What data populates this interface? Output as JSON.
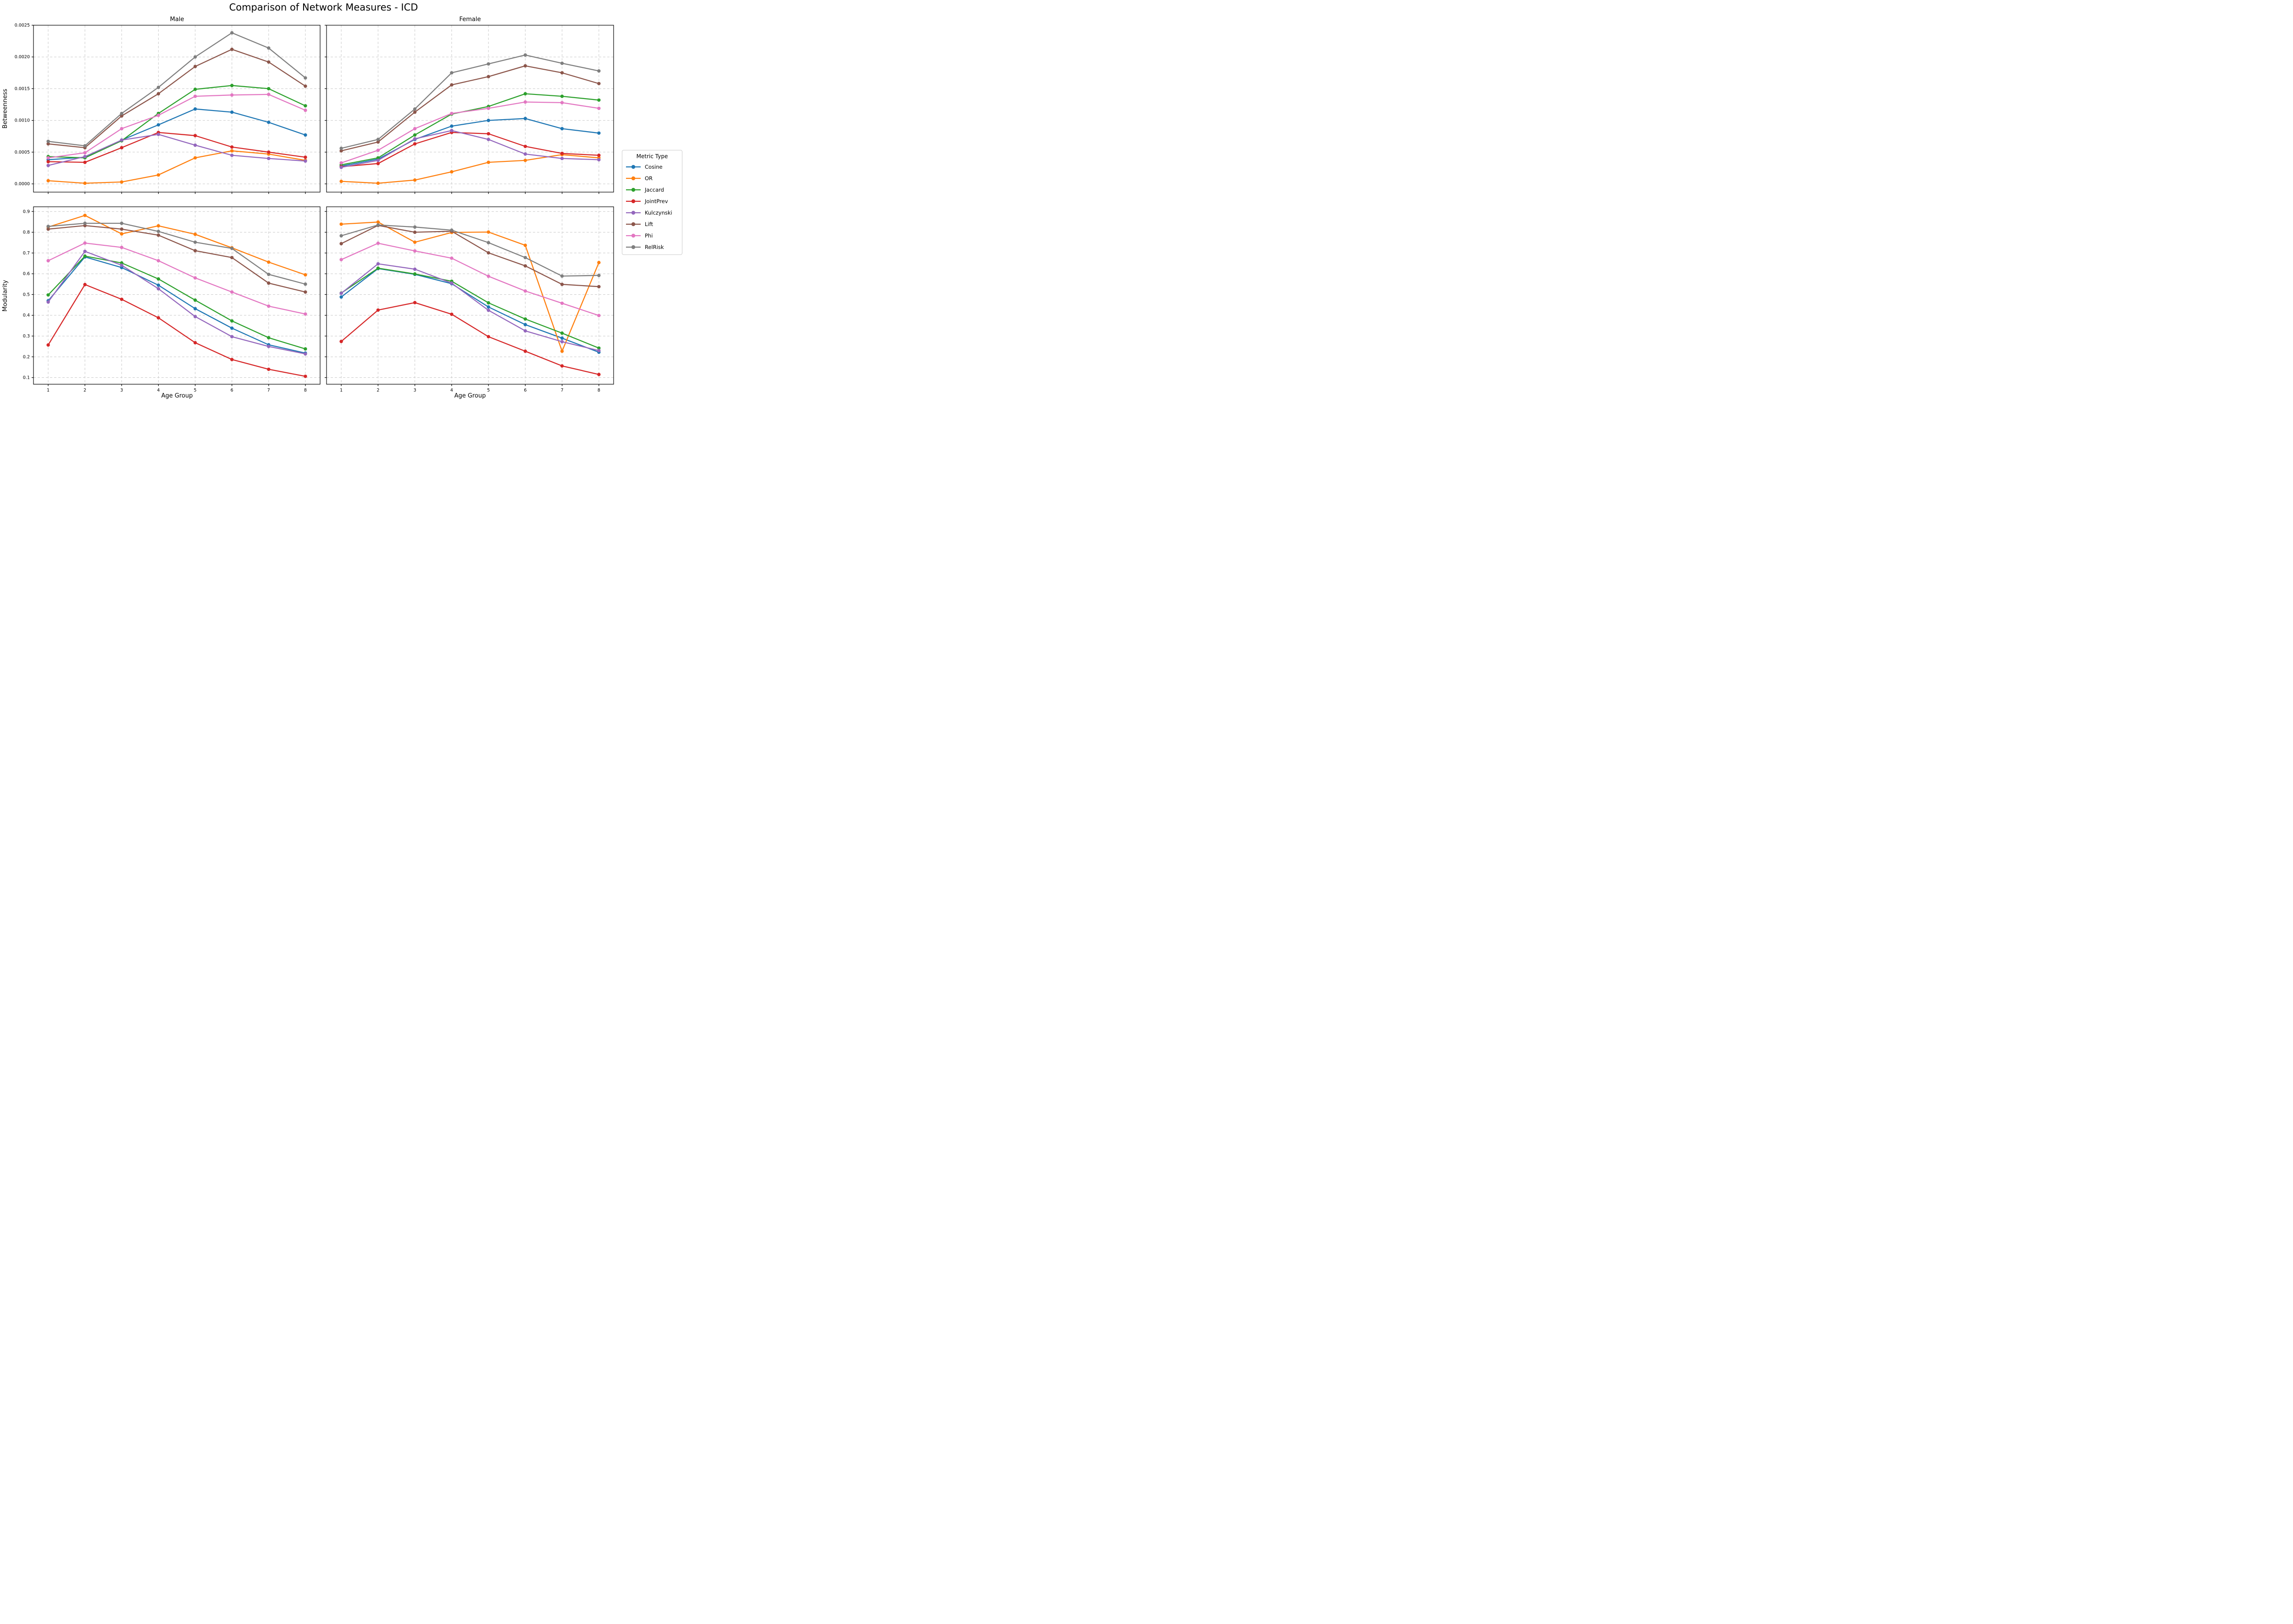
{
  "figure": {
    "title": "Comparison of Network Measures - ICD",
    "background_color": "#ffffff",
    "grid_color": "#c9c9c9",
    "spine_color": "#000000"
  },
  "axes": {
    "x_label": "Age Group",
    "row_labels": [
      "Betweenness",
      "Modularity"
    ],
    "col_titles": [
      "Male",
      "Female"
    ],
    "x_tick_labels": [
      "1",
      "2",
      "3",
      "4",
      "5",
      "6",
      "7",
      "8"
    ]
  },
  "legend": {
    "title": "Metric Type",
    "position": "right-outside",
    "entries": [
      {
        "label": "Cosine",
        "color": "#1f77b4"
      },
      {
        "label": "OR",
        "color": "#ff7f0e"
      },
      {
        "label": "Jaccard",
        "color": "#2ca02c"
      },
      {
        "label": "JointPrev",
        "color": "#d62728"
      },
      {
        "label": "Kulczynski",
        "color": "#9467bd"
      },
      {
        "label": "Lift",
        "color": "#8c564b"
      },
      {
        "label": "Phi",
        "color": "#e377c2"
      },
      {
        "label": "RelRisk",
        "color": "#7f7f7f"
      }
    ]
  },
  "chart_data": [
    {
      "type": "line",
      "panel": "betweenness-male",
      "title": "Male",
      "ylabel": "Betweenness",
      "x": [
        1,
        2,
        3,
        4,
        5,
        6,
        7,
        8
      ],
      "xlim": [
        0.6,
        8.4
      ],
      "ylim": [
        -0.00013,
        0.0025
      ],
      "yticks": [
        0.0,
        0.0005,
        0.001,
        0.0015,
        0.002,
        0.0025
      ],
      "ytick_labels": [
        "0.0000",
        "0.0005",
        "0.0010",
        "0.0015",
        "0.0020",
        "0.0025"
      ],
      "grid": true,
      "show_ytick_labels": true,
      "show_xtick_labels": false,
      "series": [
        {
          "name": "Cosine",
          "color": "#1f77b4",
          "values": [
            0.00038,
            0.00042,
            0.00069,
            0.00093,
            0.00118,
            0.00113,
            0.00097,
            0.00077
          ]
        },
        {
          "name": "OR",
          "color": "#ff7f0e",
          "values": [
            5e-05,
            1e-05,
            3e-05,
            0.00014,
            0.00041,
            0.00052,
            0.00047,
            0.00037
          ]
        },
        {
          "name": "Jaccard",
          "color": "#2ca02c",
          "values": [
            0.00043,
            0.00041,
            0.00068,
            0.00111,
            0.00149,
            0.00155,
            0.0015,
            0.00123
          ]
        },
        {
          "name": "JointPrev",
          "color": "#d62728",
          "values": [
            0.00035,
            0.00034,
            0.00057,
            0.00081,
            0.00076,
            0.00058,
            0.0005,
            0.00042
          ]
        },
        {
          "name": "Kulczynski",
          "color": "#9467bd",
          "values": [
            0.00029,
            0.00043,
            0.00069,
            0.00078,
            0.00061,
            0.00045,
            0.0004,
            0.00036
          ]
        },
        {
          "name": "Lift",
          "color": "#8c564b",
          "values": [
            0.00063,
            0.00057,
            0.00107,
            0.00142,
            0.00185,
            0.00212,
            0.00192,
            0.00154
          ]
        },
        {
          "name": "Phi",
          "color": "#e377c2",
          "values": [
            0.00041,
            0.00049,
            0.00087,
            0.00108,
            0.00138,
            0.0014,
            0.00141,
            0.00116
          ]
        },
        {
          "name": "RelRisk",
          "color": "#7f7f7f",
          "values": [
            0.00067,
            0.0006,
            0.00111,
            0.00152,
            0.002,
            0.00238,
            0.00214,
            0.00167
          ]
        }
      ]
    },
    {
      "type": "line",
      "panel": "betweenness-female",
      "title": "Female",
      "ylabel": "Betweenness",
      "x": [
        1,
        2,
        3,
        4,
        5,
        6,
        7,
        8
      ],
      "xlim": [
        0.6,
        8.4
      ],
      "ylim": [
        -0.00013,
        0.0025
      ],
      "yticks": [
        0.0,
        0.0005,
        0.001,
        0.0015,
        0.002,
        0.0025
      ],
      "ytick_labels": [
        "0.0000",
        "0.0005",
        "0.0010",
        "0.0015",
        "0.0020",
        "0.0025"
      ],
      "grid": true,
      "show_ytick_labels": false,
      "show_xtick_labels": false,
      "series": [
        {
          "name": "Cosine",
          "color": "#1f77b4",
          "values": [
            0.00028,
            0.00039,
            0.0007,
            0.00091,
            0.001,
            0.00103,
            0.00087,
            0.0008
          ]
        },
        {
          "name": "OR",
          "color": "#ff7f0e",
          "values": [
            4e-05,
            1e-05,
            6e-05,
            0.00019,
            0.00034,
            0.00037,
            0.00046,
            0.00041
          ]
        },
        {
          "name": "Jaccard",
          "color": "#2ca02c",
          "values": [
            0.0003,
            0.00041,
            0.00077,
            0.0011,
            0.00122,
            0.00142,
            0.00138,
            0.00132
          ]
        },
        {
          "name": "JointPrev",
          "color": "#d62728",
          "values": [
            0.00027,
            0.00032,
            0.00063,
            0.00081,
            0.00079,
            0.00059,
            0.00048,
            0.00045
          ]
        },
        {
          "name": "Kulczynski",
          "color": "#9467bd",
          "values": [
            0.00026,
            0.00037,
            0.00071,
            0.00084,
            0.0007,
            0.00047,
            0.0004,
            0.00038
          ]
        },
        {
          "name": "Lift",
          "color": "#8c564b",
          "values": [
            0.00052,
            0.00066,
            0.00113,
            0.00156,
            0.00169,
            0.00186,
            0.00175,
            0.00158
          ]
        },
        {
          "name": "Phi",
          "color": "#e377c2",
          "values": [
            0.00033,
            0.00053,
            0.00087,
            0.00111,
            0.00119,
            0.00129,
            0.00128,
            0.00119
          ]
        },
        {
          "name": "RelRisk",
          "color": "#7f7f7f",
          "values": [
            0.00056,
            0.0007,
            0.00118,
            0.00175,
            0.00189,
            0.00203,
            0.0019,
            0.00178
          ]
        }
      ]
    },
    {
      "type": "line",
      "panel": "modularity-male",
      "title": "",
      "ylabel": "Modularity",
      "x": [
        1,
        2,
        3,
        4,
        5,
        6,
        7,
        8
      ],
      "xlim": [
        0.6,
        8.4
      ],
      "ylim": [
        0.068,
        0.9226
      ],
      "yticks": [
        0.1,
        0.2,
        0.3,
        0.4,
        0.5,
        0.6,
        0.7,
        0.8,
        0.9
      ],
      "ytick_labels": [
        "0.1",
        "0.2",
        "0.3",
        "0.4",
        "0.5",
        "0.6",
        "0.7",
        "0.8",
        "0.9"
      ],
      "grid": true,
      "show_ytick_labels": true,
      "show_xtick_labels": true,
      "series": [
        {
          "name": "Cosine",
          "color": "#1f77b4",
          "values": [
            0.47,
            0.681,
            0.63,
            0.545,
            0.432,
            0.338,
            0.258,
            0.218
          ]
        },
        {
          "name": "OR",
          "color": "#ff7f0e",
          "values": [
            0.825,
            0.881,
            0.792,
            0.831,
            0.79,
            0.725,
            0.656,
            0.595
          ]
        },
        {
          "name": "Jaccard",
          "color": "#2ca02c",
          "values": [
            0.498,
            0.685,
            0.652,
            0.575,
            0.473,
            0.373,
            0.292,
            0.238
          ]
        },
        {
          "name": "JointPrev",
          "color": "#d62728",
          "values": [
            0.257,
            0.548,
            0.477,
            0.388,
            0.268,
            0.187,
            0.14,
            0.106
          ]
        },
        {
          "name": "Kulczynski",
          "color": "#9467bd",
          "values": [
            0.464,
            0.708,
            0.641,
            0.528,
            0.394,
            0.297,
            0.25,
            0.214
          ]
        },
        {
          "name": "Lift",
          "color": "#8c564b",
          "values": [
            0.815,
            0.832,
            0.815,
            0.786,
            0.711,
            0.678,
            0.555,
            0.512
          ]
        },
        {
          "name": "Phi",
          "color": "#e377c2",
          "values": [
            0.663,
            0.748,
            0.727,
            0.663,
            0.58,
            0.512,
            0.444,
            0.406
          ]
        },
        {
          "name": "RelRisk",
          "color": "#7f7f7f",
          "values": [
            0.828,
            0.843,
            0.843,
            0.804,
            0.752,
            0.722,
            0.597,
            0.55
          ]
        }
      ]
    },
    {
      "type": "line",
      "panel": "modularity-female",
      "title": "",
      "ylabel": "Modularity",
      "x": [
        1,
        2,
        3,
        4,
        5,
        6,
        7,
        8
      ],
      "xlim": [
        0.6,
        8.4
      ],
      "ylim": [
        0.068,
        0.9226
      ],
      "yticks": [
        0.1,
        0.2,
        0.3,
        0.4,
        0.5,
        0.6,
        0.7,
        0.8,
        0.9
      ],
      "ytick_labels": [
        "0.1",
        "0.2",
        "0.3",
        "0.4",
        "0.5",
        "0.6",
        "0.7",
        "0.8",
        "0.9"
      ],
      "grid": true,
      "show_ytick_labels": false,
      "show_xtick_labels": true,
      "series": [
        {
          "name": "Cosine",
          "color": "#1f77b4",
          "values": [
            0.488,
            0.625,
            0.597,
            0.552,
            0.44,
            0.355,
            0.29,
            0.222
          ]
        },
        {
          "name": "OR",
          "color": "#ff7f0e",
          "values": [
            0.839,
            0.849,
            0.752,
            0.799,
            0.801,
            0.737,
            0.227,
            0.654
          ]
        },
        {
          "name": "Jaccard",
          "color": "#2ca02c",
          "values": [
            0.507,
            0.627,
            0.599,
            0.564,
            0.46,
            0.382,
            0.314,
            0.242
          ]
        },
        {
          "name": "JointPrev",
          "color": "#d62728",
          "values": [
            0.274,
            0.425,
            0.461,
            0.405,
            0.297,
            0.227,
            0.156,
            0.115
          ]
        },
        {
          "name": "Kulczynski",
          "color": "#9467bd",
          "values": [
            0.506,
            0.648,
            0.622,
            0.555,
            0.424,
            0.325,
            0.273,
            0.23
          ]
        },
        {
          "name": "Lift",
          "color": "#8c564b",
          "values": [
            0.745,
            0.833,
            0.8,
            0.805,
            0.701,
            0.638,
            0.549,
            0.538
          ]
        },
        {
          "name": "Phi",
          "color": "#e377c2",
          "values": [
            0.668,
            0.747,
            0.71,
            0.675,
            0.588,
            0.517,
            0.458,
            0.399
          ]
        },
        {
          "name": "RelRisk",
          "color": "#7f7f7f",
          "values": [
            0.783,
            0.835,
            0.825,
            0.81,
            0.75,
            0.678,
            0.589,
            0.592
          ]
        }
      ]
    }
  ]
}
